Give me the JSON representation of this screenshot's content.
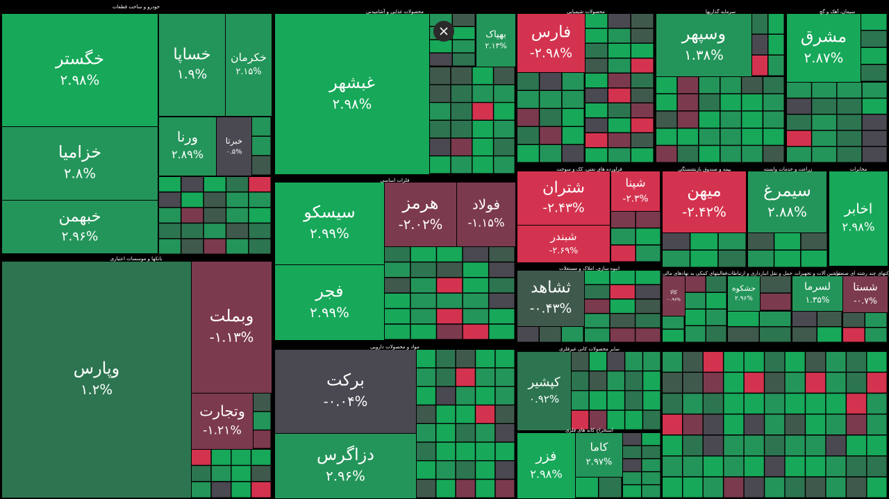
{
  "sectors": [
    {
      "title": "خودرو و ساخت قطعات",
      "tiles": [
        {
          "name": "خگستر",
          "change": "۲.۹۸%"
        },
        {
          "name": "خزامیا",
          "change": "۲.۸%"
        },
        {
          "name": "خبهمن",
          "change": "۲.۹۶%"
        },
        {
          "name": "خساپا",
          "change": "۱.۹%"
        },
        {
          "name": "خکرمان",
          "change": "۲.۱۵%"
        },
        {
          "name": "ورنا",
          "change": "۲.۸۹%"
        },
        {
          "name": "خبرتا",
          "change": "۰.۵%"
        }
      ]
    },
    {
      "title": "بانکها و موسسات اعتباری",
      "tiles": [
        {
          "name": "وپارس",
          "change": "۱.۲%"
        },
        {
          "name": "وبملت",
          "change": "-۱.۱۳%"
        },
        {
          "name": "وتجارت",
          "change": "-۱.۲۱%"
        }
      ]
    },
    {
      "title": "محصولات غذایی و آشامیدنی",
      "tiles": [
        {
          "name": "غبشهر",
          "change": "۲.۹۸%"
        },
        {
          "name": "بهپاک",
          "change": "۲.۱۳%"
        }
      ]
    },
    {
      "title": "فلزات اساسی",
      "tiles": [
        {
          "name": "سیسکو",
          "change": "۲.۹۹%"
        },
        {
          "name": "فجر",
          "change": "۲.۹۹%"
        },
        {
          "name": "هرمز",
          "change": "-۲.۰۲%"
        },
        {
          "name": "فولاد",
          "change": "-۱.۱۵%"
        }
      ]
    },
    {
      "title": "مواد و محصولات دارویی",
      "tiles": [
        {
          "name": "برکت",
          "change": "-۰.۰۴%"
        },
        {
          "name": "دزاگرس",
          "change": "۲.۹۶%"
        }
      ]
    },
    {
      "title": "محصولات شیمیایی",
      "tiles": [
        {
          "name": "فارس",
          "change": "-۲.۹۸%"
        }
      ]
    },
    {
      "title": "سرمایه گذاریها",
      "tiles": [
        {
          "name": "وسپهر",
          "change": "۱.۳۸%"
        }
      ]
    },
    {
      "title": "سیمان، آهک و گچ",
      "tiles": [
        {
          "name": "مشرق",
          "change": "۲.۸۷%"
        }
      ]
    },
    {
      "title": "فراورده های نفتی، کک و سوخت",
      "tiles": [
        {
          "name": "شتران",
          "change": "-۲.۴۳%"
        },
        {
          "name": "شبندر",
          "change": "-۲.۶۹%"
        },
        {
          "name": "شپنا",
          "change": "-۲.۳%"
        }
      ]
    },
    {
      "title": "بیمه و صندوق بازنشستگی",
      "tiles": [
        {
          "name": "میهن",
          "change": "-۲.۴۲%"
        }
      ]
    },
    {
      "title": "زراعت و خدمات وابسته",
      "tiles": [
        {
          "name": "سیمرغ",
          "change": "۲.۸۸%"
        }
      ]
    },
    {
      "title": "مخابرات",
      "tiles": [
        {
          "name": "اخابر",
          "change": "۲.۹۸%"
        }
      ]
    },
    {
      "title": "انبوه سازی، املاک و مستغلات",
      "tiles": [
        {
          "name": "ثشاهد",
          "change": "-۰.۴۳%"
        }
      ]
    },
    {
      "title": "سایر محصولات کانی غیرفلزی",
      "tiles": [
        {
          "name": "کپشیر",
          "change": "۰.۹۲%"
        }
      ]
    },
    {
      "title": "استخراج کانه های فلزی",
      "tiles": [
        {
          "name": "فزر",
          "change": "۲.۹۸%"
        },
        {
          "name": "کاما",
          "change": "۲.۹۷%"
        }
      ]
    },
    {
      "title": "فعالیتهای کمکی به نهادهای مالی",
      "tiles": [
        {
          "name": "کالا",
          "change": "-۰.۹۶%"
        }
      ]
    },
    {
      "title": "حمل و نقل انبارداری و ارتباطات",
      "tiles": [
        {
          "name": "حشکوه",
          "change": "۲.۹۶%"
        }
      ]
    },
    {
      "title": "ماشین آلات و تجهیزات",
      "tiles": [
        {
          "name": "لسرما",
          "change": "۱.۳۵%"
        }
      ]
    },
    {
      "title": "شرکتهای چند رشته ای صنعتی",
      "tiles": [
        {
          "name": "شستا",
          "change": "-۰.۷%"
        }
      ]
    }
  ]
}
